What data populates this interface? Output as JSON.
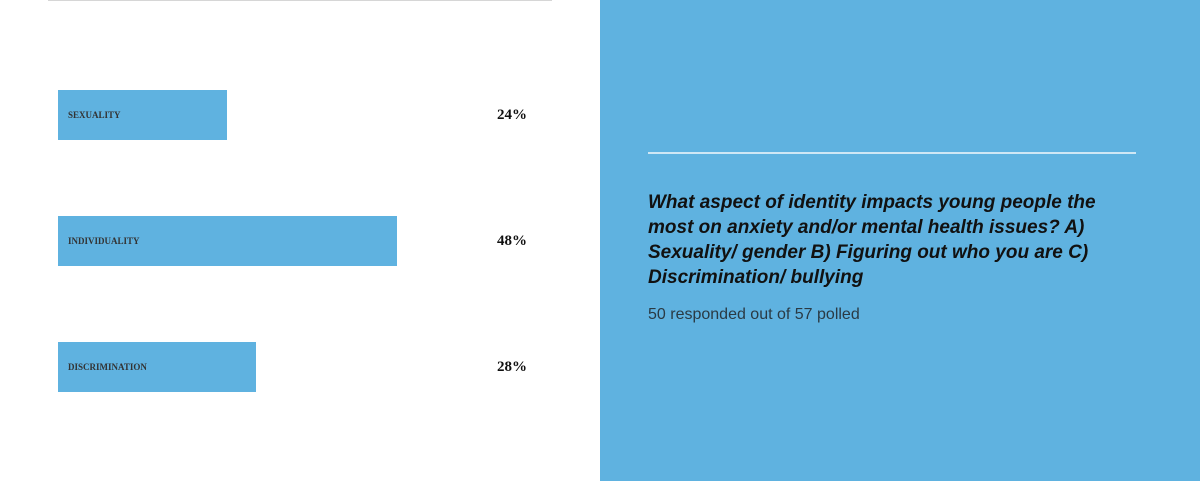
{
  "chart_data": {
    "type": "bar",
    "orientation": "horizontal",
    "title": "What aspect of identity impacts young people the most on anxiety and/or mental health issues? A) Sexuality/ gender B) Figuring out who you are C) Discrimination/ bullying",
    "subtitle": "50 responded out of 57 polled",
    "categories": [
      "SEXUALITY",
      "INDIVIDUALITY",
      "DISCRIMINATION"
    ],
    "values": [
      24,
      48,
      28
    ],
    "value_labels": [
      "24%",
      "48%",
      "28%"
    ],
    "color": "#5fb2e0"
  }
}
